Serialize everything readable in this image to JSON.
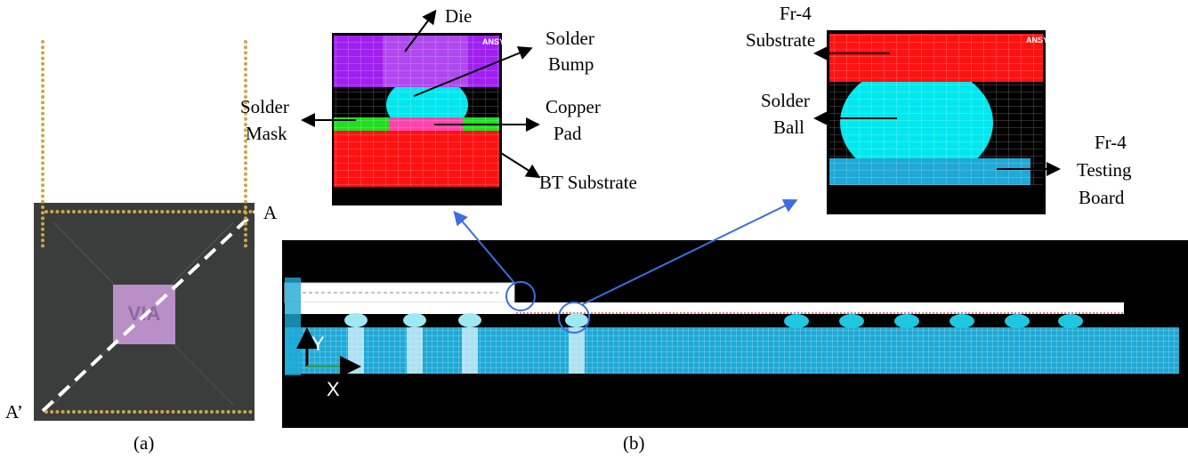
{
  "figure": {
    "panel_a": {
      "caption": "(a)",
      "corner_top": "A",
      "corner_bottom": "A’",
      "chip_logo": "VIA"
    },
    "panel_b": {
      "caption": "(b)",
      "axis_x": "X",
      "axis_y": "Y"
    },
    "inset_1": {
      "logo": "ANSYS",
      "labels": [
        {
          "lines": [
            "Die"
          ]
        },
        {
          "lines": [
            "Solder",
            "Bump"
          ]
        },
        {
          "lines": [
            "Solder",
            "Mask"
          ]
        },
        {
          "lines": [
            "Copper",
            "Pad"
          ]
        },
        {
          "lines": [
            "BT Substrate"
          ]
        }
      ]
    },
    "inset_2": {
      "logo": "ANSYS",
      "labels": [
        {
          "lines": [
            "Fr-4",
            "Substrate"
          ]
        },
        {
          "lines": [
            "Solder",
            "Ball"
          ]
        },
        {
          "lines": [
            "Fr-4",
            "Testing",
            "Board"
          ]
        }
      ]
    }
  }
}
